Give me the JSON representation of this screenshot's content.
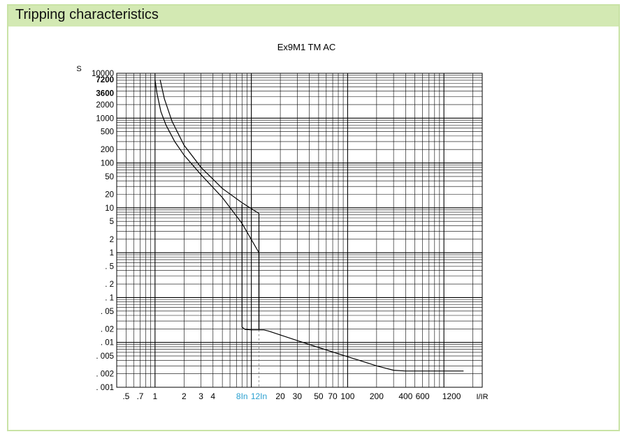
{
  "header": {
    "title": "Tripping characteristics"
  },
  "colors": {
    "header_bg": "#d3e9b3",
    "frame_border": "#c9e3a6",
    "highlight_tick": "#2aa0d0"
  },
  "chart_data": {
    "type": "line",
    "title": "Ex9M1 TM AC",
    "ylabel": "S",
    "xlabel": "I/IR",
    "x_scale": "log",
    "y_scale": "log",
    "xlim": [
      0.4,
      2500
    ],
    "ylim": [
      0.001,
      10000
    ],
    "grid": true,
    "x_tick_labels": [
      {
        "v": 0.5,
        "t": ".5"
      },
      {
        "v": 0.7,
        "t": ".7"
      },
      {
        "v": 1,
        "t": "1"
      },
      {
        "v": 2,
        "t": "2"
      },
      {
        "v": 3,
        "t": "3"
      },
      {
        "v": 4,
        "t": "4"
      },
      {
        "v": 8,
        "t": "8In",
        "highlight": true
      },
      {
        "v": 12,
        "t": "12In",
        "highlight": true
      },
      {
        "v": 20,
        "t": "20"
      },
      {
        "v": 30,
        "t": "30"
      },
      {
        "v": 50,
        "t": "50"
      },
      {
        "v": 70,
        "t": "70"
      },
      {
        "v": 100,
        "t": "100"
      },
      {
        "v": 200,
        "t": "200"
      },
      {
        "v": 400,
        "t": "400"
      },
      {
        "v": 600,
        "t": "600"
      },
      {
        "v": 1200,
        "t": "1200"
      }
    ],
    "y_tick_labels": [
      {
        "v": 10000,
        "t": "10000"
      },
      {
        "v": 7200,
        "t": "7200",
        "bold": true
      },
      {
        "v": 3600,
        "t": "3600",
        "bold": true
      },
      {
        "v": 2000,
        "t": "2000"
      },
      {
        "v": 1000,
        "t": "1000"
      },
      {
        "v": 500,
        "t": "500"
      },
      {
        "v": 200,
        "t": "200"
      },
      {
        "v": 100,
        "t": "100"
      },
      {
        "v": 50,
        "t": "50"
      },
      {
        "v": 20,
        "t": "20"
      },
      {
        "v": 10,
        "t": "10"
      },
      {
        "v": 5,
        "t": "5"
      },
      {
        "v": 2,
        "t": "2"
      },
      {
        "v": 1,
        "t": "1"
      },
      {
        "v": 0.5,
        "t": ". 5"
      },
      {
        "v": 0.2,
        "t": ". 2"
      },
      {
        "v": 0.1,
        "t": ". 1"
      },
      {
        "v": 0.05,
        "t": ". 05"
      },
      {
        "v": 0.02,
        "t": ". 02"
      },
      {
        "v": 0.01,
        "t": ". 01"
      },
      {
        "v": 0.005,
        "t": ". 005"
      },
      {
        "v": 0.002,
        "t": ". 002"
      },
      {
        "v": 0.001,
        "t": ". 001"
      }
    ],
    "series": [
      {
        "x": [
          1.0,
          1.05,
          1.15,
          1.3,
          1.6,
          2.0,
          3.0,
          5.0,
          8.0,
          12.0,
          12.0
        ],
        "y": [
          7200,
          3500,
          1400,
          700,
          300,
          150,
          55,
          17,
          4.5,
          1.0,
          0.0195
        ]
      },
      {
        "x": [
          1.13,
          1.25,
          1.5,
          2.0,
          3.0,
          5.0,
          8.0,
          12.0,
          12.0
        ],
        "y": [
          7200,
          2700,
          850,
          250,
          80,
          27,
          13,
          7.5,
          0.0195
        ]
      },
      {
        "x": [
          8.0,
          8.0,
          8.6,
          10.0,
          12.0
        ],
        "y": [
          12,
          0.022,
          0.0195,
          0.019,
          0.019
        ]
      },
      {
        "x": [
          12.0,
          13.5,
          15.0,
          30.0,
          60.0,
          100.0,
          200.0,
          300.0,
          400.0,
          600.0,
          1200.0,
          1600.0
        ],
        "y": [
          0.019,
          0.019,
          0.018,
          0.011,
          0.0068,
          0.0048,
          0.003,
          0.0024,
          0.0023,
          0.0023,
          0.0023,
          0.0023
        ]
      }
    ]
  }
}
